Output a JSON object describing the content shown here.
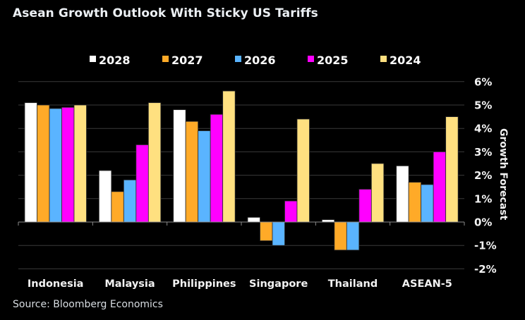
{
  "title": "Asean Growth Outlook With Sticky US Tariffs",
  "source": "Source: Bloomberg Economics",
  "chart_data": {
    "type": "bar",
    "title": "Asean Growth Outlook With Sticky US Tariffs",
    "xlabel": "",
    "ylabel": "Growth Forecast",
    "ylim": [
      -2,
      6
    ],
    "yticks": [
      6,
      5,
      4,
      3,
      2,
      1,
      0,
      -1,
      -2
    ],
    "ytick_labels": [
      "6%",
      "5%",
      "4%",
      "3%",
      "2%",
      "1%",
      "0%",
      "-1%",
      "-2%"
    ],
    "y_axis_position": "right",
    "grid": true,
    "legend_position": "top",
    "categories": [
      "Indonesia",
      "Malaysia",
      "Philippines",
      "Singapore",
      "Thailand",
      "ASEAN-5"
    ],
    "series": [
      {
        "name": "2028",
        "color": "#FFFFFF",
        "values": [
          5.1,
          2.2,
          4.8,
          0.2,
          0.1,
          2.4
        ]
      },
      {
        "name": "2027",
        "color": "#FFAA28",
        "values": [
          5.0,
          1.3,
          4.3,
          -0.8,
          -1.2,
          1.7
        ]
      },
      {
        "name": "2026",
        "color": "#5AB4FF",
        "values": [
          4.85,
          1.8,
          3.9,
          -1.0,
          -1.2,
          1.6
        ]
      },
      {
        "name": "2025",
        "color": "#FF00FF",
        "values": [
          4.9,
          3.3,
          4.6,
          0.9,
          1.4,
          3.0
        ]
      },
      {
        "name": "2024",
        "color": "#FFE080",
        "values": [
          5.0,
          5.1,
          5.6,
          4.4,
          2.5,
          4.5
        ]
      }
    ]
  }
}
